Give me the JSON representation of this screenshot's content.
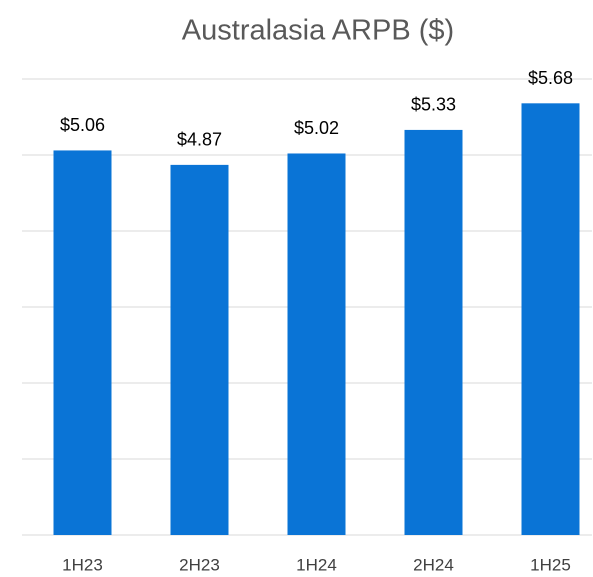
{
  "chart_data": {
    "type": "bar",
    "title": "Australasia ARPB ($)",
    "categories": [
      "1H23",
      "2H23",
      "1H24",
      "2H24",
      "1H25"
    ],
    "values": [
      5.06,
      4.87,
      5.02,
      5.33,
      5.68
    ],
    "value_labels": [
      "$5.06",
      "$4.87",
      "$5.02",
      "$5.33",
      "$5.68"
    ],
    "color": "#0a74d6",
    "ylim": [
      0,
      6
    ],
    "yticks": [
      0,
      1,
      2,
      3,
      4,
      5,
      6
    ],
    "grid": true
  }
}
